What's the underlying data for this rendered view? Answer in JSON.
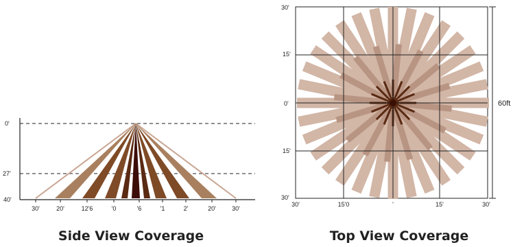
{
  "side_view": {
    "title": "Side View Coverage",
    "y_labels": [
      "0'",
      "27'",
      "40'"
    ],
    "x_labels": [
      "30'",
      "20'",
      "12'6",
      "'0",
      "'6",
      "'1",
      "2'",
      "20'",
      "30'"
    ],
    "colors": {
      "outer": "#c9a592",
      "band_light": "#a9805f",
      "band_mid": "#7f4a26",
      "band_dark": "#5a2a12",
      "center": "#3c0c06"
    }
  },
  "top_view": {
    "title": "Top View Coverage",
    "left_labels": [
      "30'",
      "15'",
      "0'",
      "15'",
      "30'"
    ],
    "bottom_labels": [
      "30'",
      "15'0",
      "'",
      "15'",
      "30'"
    ],
    "dimension_label": "60ft",
    "colors": {
      "long_ray": "#d2b6a6",
      "short_ray": "#b89483",
      "inner_ray": "#5a2a12",
      "center": "#3a1005"
    }
  }
}
